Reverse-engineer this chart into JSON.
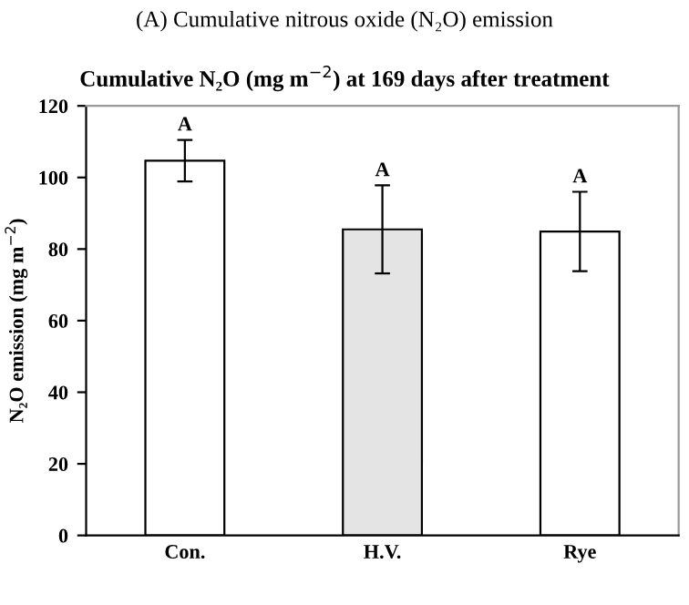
{
  "chart_data": {
    "type": "bar",
    "title": "(A) Cumulative nitrous oxide (N₂O) emission",
    "subtitle": "Cumulative N₂O (mg m$^{−2}$) at 169 days after treatment",
    "ylabel": "N₂O emission (mg m$^{−2}$)",
    "categories": [
      "Con.",
      "H.V.",
      "Rye"
    ],
    "values": [
      104.7,
      85.5,
      84.9
    ],
    "errors": [
      5.8,
      12.3,
      11.1
    ],
    "colors": [
      "#ffffff",
      "#e4e4e4",
      "#ffffff"
    ],
    "ylim": [
      0,
      120
    ],
    "yticks": [
      0,
      20,
      40,
      60,
      80,
      100,
      120
    ],
    "grid": false,
    "annotations": [
      {
        "text": "A",
        "x": "Con.",
        "y": 110.5
      },
      {
        "text": "A",
        "x": "H.V.",
        "y": 97.8
      },
      {
        "text": "A",
        "x": "Rye",
        "y": 96.0
      }
    ]
  }
}
